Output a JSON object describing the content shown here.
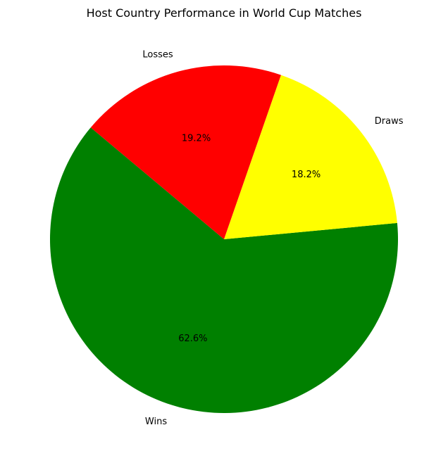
{
  "chart_data": {
    "type": "pie",
    "title": "Host Country Performance in World Cup Matches",
    "categories": [
      "Wins",
      "Draws",
      "Losses"
    ],
    "values": [
      62.6,
      18.2,
      19.2
    ],
    "percent_labels": [
      "62.6%",
      "18.2%",
      "19.2%"
    ],
    "colors": [
      "#008000",
      "#ffff00",
      "#ff0000"
    ],
    "start_angle_deg": 140,
    "direction": "counterclockwise",
    "legend": "none"
  }
}
